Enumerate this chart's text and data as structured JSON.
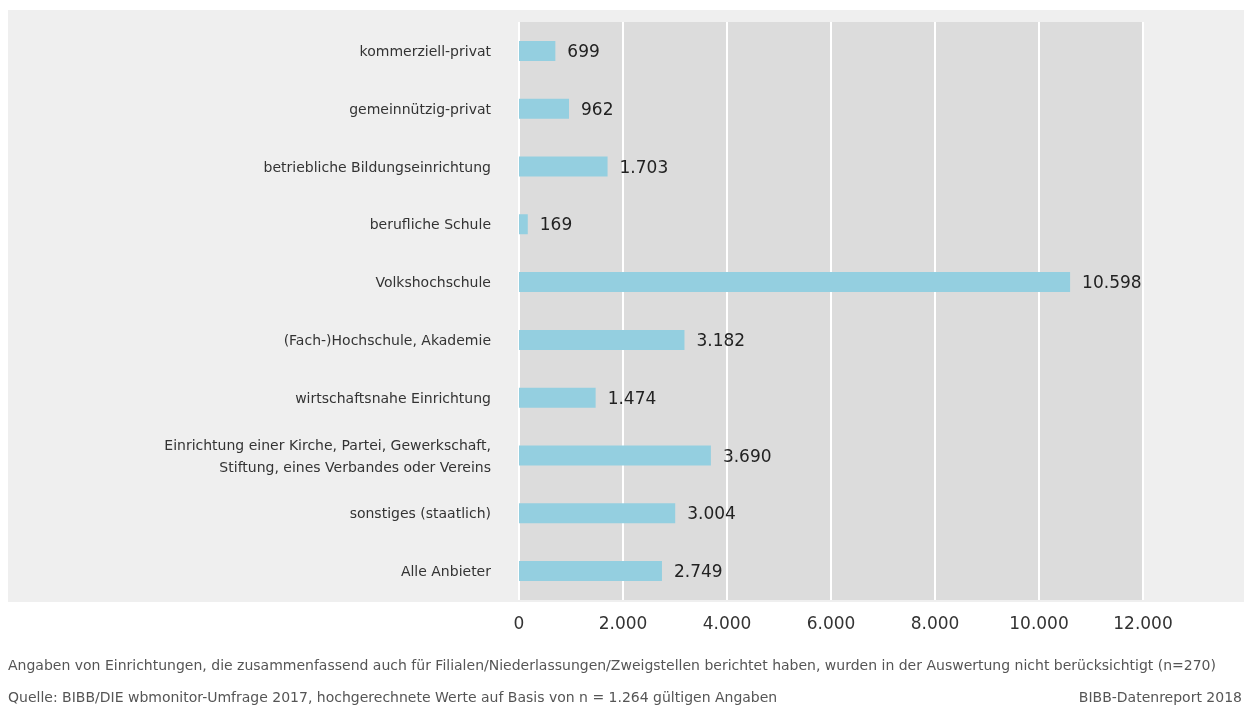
{
  "chart_data": {
    "type": "bar",
    "orientation": "horizontal",
    "categories": [
      "kommerziell-privat",
      "gemeinnützig-privat",
      "betriebliche Bildungseinrichtung",
      "berufliche Schule",
      "Volkshochschule",
      "(Fach-)Hochschule, Akademie",
      "wirtschaftsnahe Einrichtung",
      "Einrichtung einer Kirche, Partei, Gewerkschaft,\nStiftung, eines Verbandes oder Vereins",
      "sonstiges (staatlich)",
      "Alle Anbieter"
    ],
    "values": [
      699,
      962,
      1703,
      169,
      10598,
      3182,
      1474,
      3690,
      3004,
      2749
    ],
    "value_labels": [
      "699",
      "962",
      "1.703",
      "169",
      "10.598",
      "3.182",
      "1.474",
      "3.690",
      "3.004",
      "2.749"
    ],
    "color": "#94cfe0",
    "xlim": [
      0,
      12000
    ],
    "xticks": [
      0,
      {
        "value": 2000,
        "label": "2.000"
      },
      {
        "value": 4000,
        "label": "4.000"
      },
      {
        "value": 6000,
        "label": "6.000"
      },
      {
        "value": 8000,
        "label": "8.000"
      },
      {
        "value": 10000,
        "label": "10.000"
      },
      {
        "value": 12000,
        "label": "12.000"
      }
    ],
    "grid": "x",
    "annotations": [
      "Angaben von Einrichtungen, die zusammenfassend auch für Filialen/Niederlassungen/Zweigstellen berichtet haben, wurden in der Auswertung nicht berücksichtigt (n=270)",
      "Quelle: BIBB/DIE wbmonitor-Umfrage 2017, hochgerechnete Werte auf Basis von n = 1.264 gültigen Angaben",
      "BIBB-Datenreport 2018"
    ]
  }
}
